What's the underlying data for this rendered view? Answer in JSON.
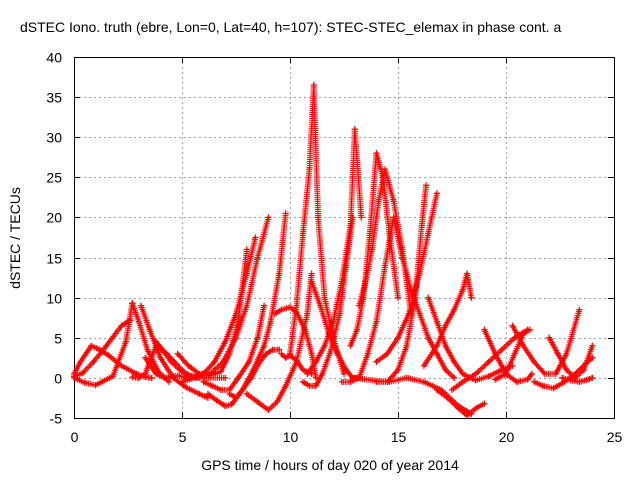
{
  "chart_data": {
    "type": "scatter",
    "title": "dSTEC Iono. truth (ebre, Lon=0, Lat=40, h=107): STEC-STEC_elemax in phase cont. a",
    "xlabel": "GPS time / hours of day 020 of year 2014",
    "ylabel": "dSTEC  / TECUs",
    "xlim": [
      0,
      25
    ],
    "ylim": [
      -5,
      40
    ],
    "x_ticks": [
      0,
      5,
      10,
      15,
      20,
      25
    ],
    "y_ticks": [
      -5,
      0,
      5,
      10,
      15,
      20,
      25,
      30,
      35,
      40
    ],
    "x_tick_labels": [
      "0",
      "5",
      "10",
      "15",
      "20",
      "25"
    ],
    "y_tick_labels": [
      "-5",
      "0",
      "5",
      "10",
      "15",
      "20",
      "25",
      "30",
      "35",
      "40"
    ],
    "grid": true,
    "legend": "none",
    "marker": "plus",
    "color": "#ff0000",
    "series": [
      {
        "x": [
          0.0,
          0.4,
          0.9,
          1.5,
          2.2,
          2.6
        ],
        "values": [
          0.2,
          0.6,
          2.0,
          4.0,
          6.5,
          7.2
        ]
      },
      {
        "x": [
          0.0,
          0.5,
          1.0,
          1.8,
          2.4,
          2.7
        ],
        "values": [
          0.0,
          -0.6,
          -0.9,
          0.2,
          4.5,
          9.3
        ]
      },
      {
        "x": [
          0.0,
          0.3,
          0.8,
          1.2,
          1.6,
          2.2,
          2.9,
          3.3,
          3.6
        ],
        "values": [
          0.5,
          2.0,
          4.0,
          3.5,
          2.8,
          1.5,
          0.5,
          0.1,
          0.0
        ]
      },
      {
        "x": [
          2.7,
          3.0,
          3.4,
          3.9,
          4.4
        ],
        "values": [
          9.3,
          7.0,
          3.5,
          0.8,
          -0.5
        ]
      },
      {
        "x": [
          3.1,
          3.5,
          4.0,
          4.6,
          5.2,
          5.8,
          6.2
        ],
        "values": [
          9.0,
          6.0,
          2.5,
          0.0,
          -1.2,
          -2.0,
          -2.5
        ]
      },
      {
        "x": [
          2.7,
          3.0,
          3.3,
          3.5,
          3.8,
          4.3,
          5.0
        ],
        "values": [
          0.1,
          0.0,
          0.5,
          2.0,
          4.0,
          3.0,
          1.0
        ]
      },
      {
        "x": [
          3.3,
          3.8,
          4.2,
          4.8,
          5.3,
          5.8
        ],
        "values": [
          2.5,
          0.5,
          0.0,
          0.3,
          0.0,
          0.4
        ]
      },
      {
        "x": [
          3.8,
          4.1,
          4.5,
          4.9,
          5.3,
          5.8,
          6.3,
          7.0
        ],
        "values": [
          4.5,
          3.5,
          2.0,
          1.0,
          0.3,
          0.0,
          0.0,
          0.0
        ]
      },
      {
        "x": [
          4.8,
          5.3,
          5.8,
          6.3,
          6.8,
          7.2,
          7.6,
          8.0
        ],
        "values": [
          3.0,
          1.5,
          0.5,
          0.3,
          0.8,
          3.0,
          7.0,
          16.0
        ]
      },
      {
        "x": [
          5.0,
          5.6,
          6.1,
          6.5,
          7.0,
          7.5,
          8.0,
          8.4
        ],
        "values": [
          -0.5,
          0.0,
          0.8,
          2.0,
          4.5,
          8.0,
          13.0,
          17.5
        ]
      },
      {
        "x": [
          5.2,
          5.7,
          6.3,
          6.9,
          7.5,
          8.0,
          8.5,
          9.0
        ],
        "values": [
          0.5,
          0.0,
          0.5,
          2.0,
          5.0,
          9.0,
          15.0,
          20.0
        ]
      },
      {
        "x": [
          6.0,
          6.4,
          6.8,
          7.2,
          7.6,
          8.1,
          8.5,
          8.8
        ],
        "values": [
          -0.5,
          -1.0,
          -1.5,
          -1.5,
          0.0,
          2.0,
          5.0,
          9.0
        ]
      },
      {
        "x": [
          6.2,
          6.6,
          7.0,
          7.3,
          7.8,
          8.3,
          8.8,
          9.1,
          9.5,
          9.8
        ],
        "values": [
          -2.0,
          -2.8,
          -3.5,
          -3.3,
          -1.5,
          1.0,
          4.0,
          7.0,
          13.0,
          20.5
        ]
      },
      {
        "x": [
          7.2,
          7.5,
          7.8,
          8.2,
          8.6,
          8.9,
          9.2,
          9.5
        ],
        "values": [
          -2.0,
          -2.5,
          -1.5,
          0.0,
          2.0,
          3.0,
          3.5,
          3.5
        ]
      },
      {
        "x": [
          8.0,
          8.5,
          9.0,
          9.4,
          9.8,
          10.3,
          10.8,
          11.0
        ],
        "values": [
          -2.0,
          -3.0,
          -4.0,
          -3.0,
          -1.0,
          2.0,
          8.0,
          13.0
        ]
      },
      {
        "x": [
          9.3,
          9.6,
          10.0,
          10.3,
          10.7,
          11.0,
          11.2
        ],
        "values": [
          8.0,
          8.5,
          8.8,
          8.2,
          6.0,
          3.0,
          0.0
        ]
      },
      {
        "x": [
          9.6,
          9.8,
          10.0,
          10.3,
          10.6,
          11.0
        ],
        "values": [
          3.0,
          2.5,
          2.8,
          2.2,
          1.0,
          0.5
        ]
      },
      {
        "x": [
          10.0,
          10.3,
          10.6,
          10.9,
          11.1,
          11.3,
          11.6,
          12.0,
          12.5
        ],
        "values": [
          3.0,
          9.0,
          18.0,
          26.0,
          36.5,
          20.0,
          10.0,
          5.0,
          0.5
        ]
      },
      {
        "x": [
          10.6,
          10.9,
          11.2,
          11.5,
          11.9,
          12.3,
          12.6,
          12.9
        ],
        "values": [
          -0.5,
          -1.0,
          -1.0,
          0.5,
          3.5,
          8.0,
          14.0,
          20.0
        ]
      },
      {
        "x": [
          10.8,
          11.2,
          11.6,
          12.0,
          12.4,
          12.8,
          13.0,
          13.3
        ],
        "values": [
          0.5,
          2.0,
          4.0,
          7.0,
          12.0,
          19.0,
          31.0,
          20.0
        ]
      },
      {
        "x": [
          11.0,
          11.4,
          11.8,
          12.2,
          12.6,
          12.9,
          13.2
        ],
        "values": [
          12.0,
          9.0,
          5.5,
          3.0,
          1.0,
          0.0,
          0.0
        ]
      },
      {
        "x": [
          12.4,
          12.8,
          13.2,
          13.6,
          14.0,
          14.4,
          14.8
        ],
        "values": [
          -0.5,
          -0.5,
          0.0,
          3.0,
          7.0,
          14.0,
          20.0
        ]
      },
      {
        "x": [
          12.8,
          13.1,
          13.4,
          13.7,
          14.0,
          14.3,
          14.6,
          15.0
        ],
        "values": [
          4.0,
          6.0,
          10.0,
          18.0,
          28.0,
          25.0,
          18.0,
          10.0
        ]
      },
      {
        "x": [
          13.2,
          13.5,
          13.8,
          14.1,
          14.4,
          14.8,
          15.2,
          15.6
        ],
        "values": [
          9.0,
          12.0,
          16.0,
          22.0,
          26.0,
          22.0,
          16.0,
          8.0
        ]
      },
      {
        "x": [
          14.0,
          14.5,
          15.0,
          15.4,
          15.8,
          16.1,
          16.3
        ],
        "values": [
          -0.5,
          -0.5,
          1.0,
          4.0,
          10.0,
          19.0,
          24.0
        ]
      },
      {
        "x": [
          14.0,
          14.5,
          15.0,
          15.5,
          16.0,
          16.4,
          16.8
        ],
        "values": [
          2.0,
          3.0,
          5.0,
          8.0,
          13.0,
          18.0,
          23.0
        ]
      },
      {
        "x": [
          14.8,
          15.2,
          15.6,
          16.0,
          16.4,
          16.8,
          17.2,
          17.6
        ],
        "values": [
          20.0,
          15.0,
          11.0,
          8.0,
          5.0,
          3.0,
          1.0,
          0.0
        ]
      },
      {
        "x": [
          13.0,
          13.8,
          14.6,
          15.4,
          16.2,
          17.0,
          17.8,
          18.4
        ],
        "values": [
          0.0,
          -0.3,
          -0.5,
          0.0,
          -0.5,
          -1.5,
          -3.5,
          -4.5
        ]
      },
      {
        "x": [
          16.8,
          17.3,
          17.8,
          18.2,
          18.6,
          19.0
        ],
        "values": [
          -1.5,
          -2.5,
          -3.8,
          -4.7,
          -3.8,
          -3.2
        ]
      },
      {
        "x": [
          16.2,
          16.8,
          17.2,
          17.6,
          18.0,
          18.2,
          18.4
        ],
        "values": [
          1.5,
          4.0,
          6.5,
          8.5,
          11.0,
          13.0,
          10.0
        ]
      },
      {
        "x": [
          16.4,
          16.8,
          17.2,
          17.6,
          18.0,
          18.6,
          19.2,
          19.8,
          20.3
        ],
        "values": [
          10.0,
          7.0,
          4.0,
          2.0,
          0.5,
          -0.3,
          0.2,
          1.0,
          1.5
        ]
      },
      {
        "x": [
          17.5,
          18.0,
          18.6,
          19.2,
          19.8,
          20.4,
          21.0
        ],
        "values": [
          -1.5,
          -0.5,
          0.5,
          2.0,
          3.5,
          5.0,
          6.0
        ]
      },
      {
        "x": [
          19.0,
          19.5,
          20.0,
          20.5,
          21.0,
          21.2
        ],
        "values": [
          6.0,
          3.0,
          0.5,
          -0.5,
          -0.2,
          0.5
        ]
      },
      {
        "x": [
          19.5,
          20.0,
          20.4,
          20.8,
          21.1
        ],
        "values": [
          -0.2,
          0.5,
          3.0,
          5.5,
          6.0
        ]
      },
      {
        "x": [
          20.3,
          20.8,
          21.3,
          21.8,
          22.3,
          22.8,
          23.4
        ],
        "values": [
          6.5,
          4.0,
          2.0,
          0.5,
          0.5,
          3.0,
          8.5
        ]
      },
      {
        "x": [
          21.3,
          21.7,
          22.2,
          22.7,
          23.2,
          23.7,
          24.0
        ],
        "values": [
          -0.5,
          -1.0,
          -1.3,
          -0.5,
          0.5,
          1.8,
          2.5
        ]
      },
      {
        "x": [
          22.0,
          22.4,
          22.8,
          23.2,
          23.6,
          24.0
        ],
        "values": [
          5.0,
          3.0,
          1.0,
          0.0,
          1.0,
          4.0
        ]
      },
      {
        "x": [
          22.6,
          23.0,
          23.4,
          23.8,
          24.0
        ],
        "values": [
          0.0,
          -0.3,
          -0.5,
          -0.2,
          0.0
        ]
      }
    ]
  }
}
